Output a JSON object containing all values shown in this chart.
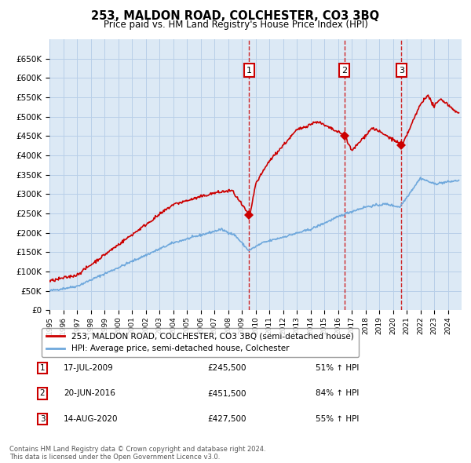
{
  "title": "253, MALDON ROAD, COLCHESTER, CO3 3BQ",
  "subtitle": "Price paid vs. HM Land Registry's House Price Index (HPI)",
  "plot_bg_color": "#dce9f5",
  "grid_color": "#b8cfe8",
  "legend_line1": "253, MALDON ROAD, COLCHESTER, CO3 3BQ (semi-detached house)",
  "legend_line2": "HPI: Average price, semi-detached house, Colchester",
  "footer": "Contains HM Land Registry data © Crown copyright and database right 2024.\nThis data is licensed under the Open Government Licence v3.0.",
  "transactions": [
    {
      "num": 1,
      "date": "17-JUL-2009",
      "price": 245500,
      "year": 2009.54,
      "pct": "51%",
      "dir": "↑"
    },
    {
      "num": 2,
      "date": "20-JUN-2016",
      "price": 451500,
      "year": 2016.47,
      "pct": "84%",
      "dir": "↑"
    },
    {
      "num": 3,
      "date": "14-AUG-2020",
      "price": 427500,
      "year": 2020.62,
      "pct": "55%",
      "dir": "↑"
    }
  ],
  "hpi_color": "#6fa8dc",
  "price_color": "#cc0000",
  "dashed_color": "#cc0000",
  "ylim": [
    0,
    700000
  ],
  "yticks": [
    0,
    50000,
    100000,
    150000,
    200000,
    250000,
    300000,
    350000,
    400000,
    450000,
    500000,
    550000,
    600000,
    650000
  ],
  "xlim_start": 1995.0,
  "xlim_end": 2025.0
}
